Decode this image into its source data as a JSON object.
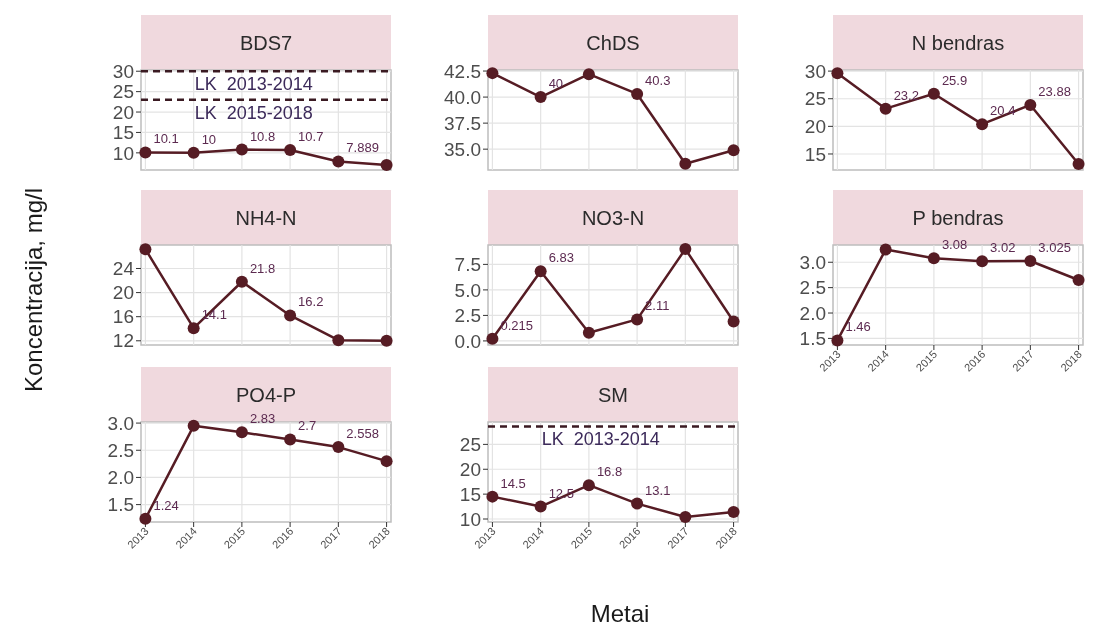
{
  "chart_data": [
    {
      "type": "line",
      "title": "BDS7",
      "categories": [
        "2013",
        "2014",
        "2015",
        "2016",
        "2017",
        "2018"
      ],
      "series": [
        {
          "color": "#561c24",
          "values": [
            10.1,
            10,
            10.8,
            10.7,
            7.889,
            7.0
          ],
          "value_labels": [
            "10.1",
            "10",
            "10.8",
            "10.7",
            "7.889",
            null
          ]
        }
      ],
      "ylim": [
        5.8,
        30.3
      ],
      "yticks": [
        10,
        15,
        20,
        25,
        30
      ],
      "grid": true,
      "marker": "circle",
      "tick_labels": "y",
      "ref_lines": [
        {
          "axis": "y",
          "value": 30,
          "label": "LK  2013-2014",
          "line_style": "dashed"
        },
        {
          "axis": "y",
          "value": 23,
          "label": "LK  2015-2018",
          "line_style": "dashed"
        }
      ]
    },
    {
      "type": "line",
      "title": "ChDS",
      "categories": [
        "2013",
        "2014",
        "2015",
        "2016",
        "2017",
        "2018"
      ],
      "series": [
        {
          "color": "#561c24",
          "values": [
            42.3,
            40,
            42.2,
            40.3,
            33.6,
            34.9
          ],
          "value_labels": [
            null,
            "40",
            null,
            "40.3",
            null,
            null
          ]
        }
      ],
      "ylim": [
        33.0,
        42.6
      ],
      "yticks": [
        {
          "value": 35,
          "label": "35.0"
        },
        37.5,
        {
          "value": 40,
          "label": "40.0"
        },
        42.5
      ],
      "grid": true,
      "marker": "circle",
      "tick_labels": "y"
    },
    {
      "type": "line",
      "title": "N bendras",
      "categories": [
        "2013",
        "2014",
        "2015",
        "2016",
        "2017",
        "2018"
      ],
      "series": [
        {
          "color": "#561c24",
          "values": [
            29.6,
            23.2,
            25.9,
            20.4,
            23.88,
            13.2
          ],
          "value_labels": [
            null,
            "23.2",
            "25.9",
            "20.4",
            "23.88",
            null
          ]
        }
      ],
      "ylim": [
        12.1,
        30.2
      ],
      "yticks": [
        15,
        20,
        25,
        30
      ],
      "grid": true,
      "marker": "circle",
      "tick_labels": "y"
    },
    {
      "type": "line",
      "title": "NH4-N",
      "ylabel": "Koncentracija, mg/l",
      "categories": [
        "2013",
        "2014",
        "2015",
        "2016",
        "2017",
        "2018"
      ],
      "series": [
        {
          "color": "#561c24",
          "values": [
            27.2,
            14.1,
            21.8,
            16.2,
            12.1,
            12.0
          ],
          "value_labels": [
            null,
            "14.1",
            "21.8",
            "16.2",
            null,
            null
          ]
        }
      ],
      "ylim": [
        11.3,
        27.9
      ],
      "yticks": [
        12,
        16,
        20,
        24
      ],
      "grid": true,
      "marker": "circle",
      "tick_labels": "y"
    },
    {
      "type": "line",
      "title": "NO3-N",
      "categories": [
        "2013",
        "2014",
        "2015",
        "2016",
        "2017",
        "2018"
      ],
      "series": [
        {
          "color": "#561c24",
          "values": [
            0.215,
            6.83,
            0.8,
            2.11,
            9.0,
            1.9
          ],
          "value_labels": [
            "0.215",
            "6.83",
            null,
            "2.11",
            null,
            null
          ]
        }
      ],
      "ylim": [
        -0.4,
        9.4
      ],
      "yticks": [
        {
          "value": 0,
          "label": "0.0"
        },
        2.5,
        {
          "value": 5,
          "label": "5.0"
        },
        7.5
      ],
      "grid": true,
      "marker": "circle",
      "tick_labels": "y"
    },
    {
      "type": "line",
      "title": "P bendras",
      "categories": [
        "2013",
        "2014",
        "2015",
        "2016",
        "2017",
        "2018"
      ],
      "series": [
        {
          "color": "#561c24",
          "values": [
            1.46,
            3.25,
            3.08,
            3.02,
            3.025,
            2.65
          ],
          "value_labels": [
            "1.46",
            null,
            "3.08",
            "3.02",
            "3.025",
            null
          ]
        }
      ],
      "ylim": [
        1.37,
        3.34
      ],
      "yticks": [
        1.5,
        {
          "value": 2,
          "label": "2.0"
        },
        2.5,
        {
          "value": 3,
          "label": "3.0"
        }
      ],
      "grid": true,
      "marker": "circle"
    },
    {
      "type": "line",
      "title": "PO4-P",
      "categories": [
        "2013",
        "2014",
        "2015",
        "2016",
        "2017",
        "2018"
      ],
      "series": [
        {
          "color": "#561c24",
          "values": [
            1.24,
            2.95,
            2.83,
            2.7,
            2.558,
            2.3
          ],
          "value_labels": [
            "1.24",
            null,
            "2.83",
            "2.7",
            "2.558",
            null
          ]
        }
      ],
      "ylim": [
        1.18,
        3.02
      ],
      "yticks": [
        1.5,
        {
          "value": 2,
          "label": "2.0"
        },
        2.5,
        {
          "value": 3,
          "label": "3.0"
        }
      ],
      "grid": true,
      "marker": "circle"
    },
    {
      "type": "line",
      "title": "SM",
      "xlabel": "Metai",
      "categories": [
        "2013",
        "2014",
        "2015",
        "2016",
        "2017",
        "2018"
      ],
      "series": [
        {
          "color": "#561c24",
          "values": [
            14.5,
            12.5,
            16.8,
            13.1,
            10.4,
            11.4
          ],
          "value_labels": [
            "14.5",
            "12.5",
            "16.8",
            "13.1",
            null,
            null
          ]
        }
      ],
      "ylim": [
        9.4,
        29.5
      ],
      "yticks": [
        10,
        15,
        20,
        25
      ],
      "grid": true,
      "marker": "circle",
      "ref_lines": [
        {
          "axis": "y",
          "value": 28.6,
          "label": "LK  2013-2014",
          "line_style": "dashed"
        }
      ]
    }
  ]
}
